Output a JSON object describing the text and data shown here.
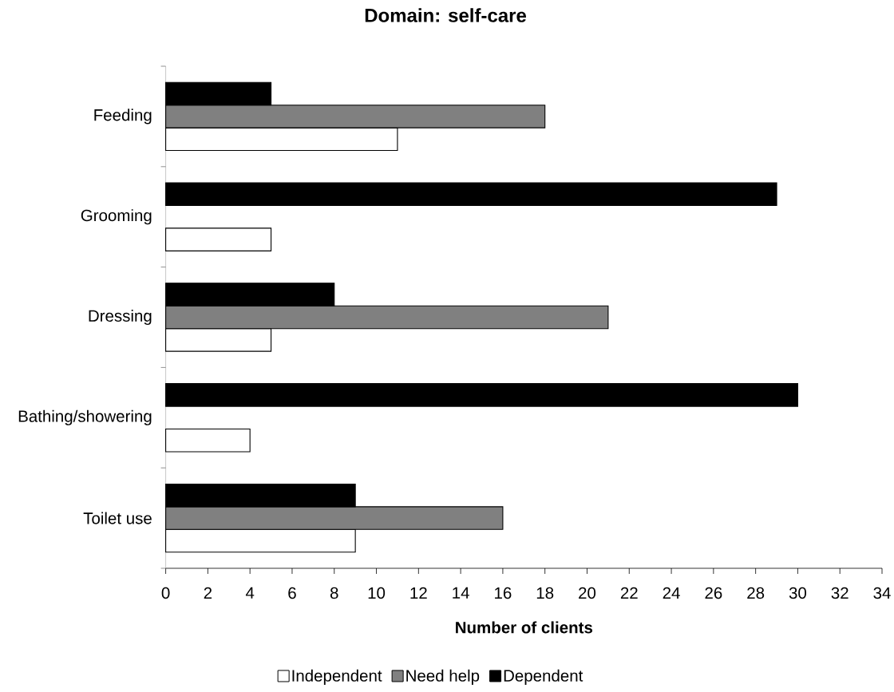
{
  "chart_data": {
    "type": "bar",
    "orientation": "horizontal",
    "title": "Domain: self-care",
    "xlabel": "Number of clients",
    "categories": [
      "Feeding",
      "Grooming",
      "Dressing",
      "Bathing/showering",
      "Toilet use"
    ],
    "series": [
      {
        "name": "Independent",
        "color": "#ffffff",
        "values": [
          11,
          5,
          5,
          4,
          9
        ]
      },
      {
        "name": "Need help",
        "color": "#808080",
        "values": [
          18,
          null,
          21,
          null,
          16
        ]
      },
      {
        "name": "Dependent",
        "color": "#000000",
        "values": [
          5,
          29,
          8,
          30,
          9
        ]
      }
    ],
    "xlim": [
      0,
      34
    ],
    "xticks": [
      0,
      2,
      4,
      6,
      8,
      10,
      12,
      14,
      16,
      18,
      20,
      22,
      24,
      26,
      28,
      30,
      32,
      34
    ],
    "legend": "bottom"
  }
}
